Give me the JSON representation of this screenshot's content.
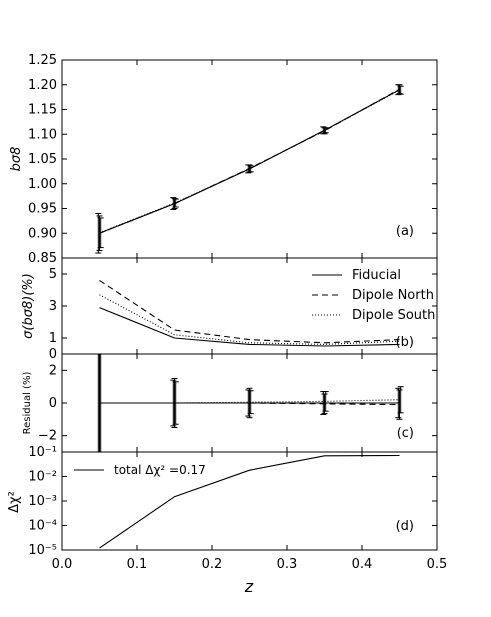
{
  "figure": {
    "xlabel": "z",
    "xticks": [
      "0.0",
      "0.1",
      "0.2",
      "0.3",
      "0.4",
      "0.5"
    ],
    "xlim": [
      0.0,
      0.5
    ]
  },
  "chart_data": [
    {
      "type": "line",
      "panel_label": "(a)",
      "ylabel": "bσ8",
      "ylim": [
        0.85,
        1.25
      ],
      "yticks": [
        "0.85",
        "0.90",
        "0.95",
        "1.00",
        "1.05",
        "1.10",
        "1.15",
        "1.20",
        "1.25"
      ],
      "x": [
        0.05,
        0.15,
        0.25,
        0.35,
        0.45
      ],
      "series": [
        {
          "values": [
            0.9,
            0.96,
            1.03,
            1.108,
            1.19
          ],
          "err": [
            0.04,
            0.012,
            0.008,
            0.007,
            0.01
          ],
          "style": "solid"
        },
        {
          "values": [
            0.9,
            0.96,
            1.031,
            1.107,
            1.191
          ],
          "err": [
            0.035,
            0.01,
            0.007,
            0.006,
            0.009
          ],
          "style": "dashed"
        },
        {
          "values": [
            0.901,
            0.961,
            1.03,
            1.108,
            1.189
          ],
          "err": [
            0.03,
            0.008,
            0.006,
            0.005,
            0.008
          ],
          "style": "dotted"
        }
      ]
    },
    {
      "type": "line",
      "panel_label": "(b)",
      "ylabel": "σ(bσ8)(%)",
      "ylim": [
        0,
        6
      ],
      "yticks": [
        "0",
        "1",
        "3",
        "5"
      ],
      "x": [
        0.05,
        0.15,
        0.25,
        0.35,
        0.45
      ],
      "legend_position": "top-right",
      "series": [
        {
          "name": "Fiducial",
          "style": "solid",
          "values": [
            2.9,
            1.0,
            0.6,
            0.5,
            0.6
          ]
        },
        {
          "name": "Dipole North",
          "style": "dashed",
          "values": [
            4.6,
            1.5,
            0.9,
            0.7,
            0.9
          ]
        },
        {
          "name": "Dipole South",
          "style": "dotted",
          "values": [
            3.7,
            1.2,
            0.7,
            0.6,
            0.8
          ]
        }
      ]
    },
    {
      "type": "line",
      "panel_label": "(c)",
      "ylabel": "Residual (%)",
      "ylim": [
        -3,
        3
      ],
      "yticks": [
        "−2",
        "0",
        "2"
      ],
      "x": [
        0.05,
        0.15,
        0.25,
        0.35,
        0.45
      ],
      "series": [
        {
          "style": "solid",
          "values": [
            0.0,
            0.0,
            0.0,
            0.0,
            0.0
          ],
          "err": [
            4.5,
            1.4,
            0.8,
            0.7,
            0.9
          ]
        },
        {
          "style": "dashed",
          "values": [
            0.0,
            0.0,
            0.0,
            -0.05,
            -0.1
          ],
          "err": [
            4.5,
            1.5,
            0.9,
            0.6,
            0.9
          ]
        },
        {
          "style": "dotted",
          "values": [
            0.0,
            0.0,
            0.05,
            0.1,
            0.2
          ],
          "err": [
            4.5,
            1.3,
            0.7,
            0.6,
            0.8
          ]
        }
      ]
    },
    {
      "type": "line",
      "panel_label": "(d)",
      "ylabel": "Δχ²",
      "yscale": "log",
      "ylim": [
        1e-05,
        0.1
      ],
      "yticks": [
        "10⁻⁵",
        "10⁻⁴",
        "10⁻³",
        "10⁻²",
        "10⁻¹"
      ],
      "x": [
        0.05,
        0.15,
        0.25,
        0.35,
        0.45
      ],
      "legend_position": "top-left",
      "series": [
        {
          "name": "total Δχ² =0.17",
          "style": "solid",
          "values": [
            1.2e-05,
            0.0015,
            0.018,
            0.07,
            0.072
          ]
        }
      ]
    }
  ]
}
